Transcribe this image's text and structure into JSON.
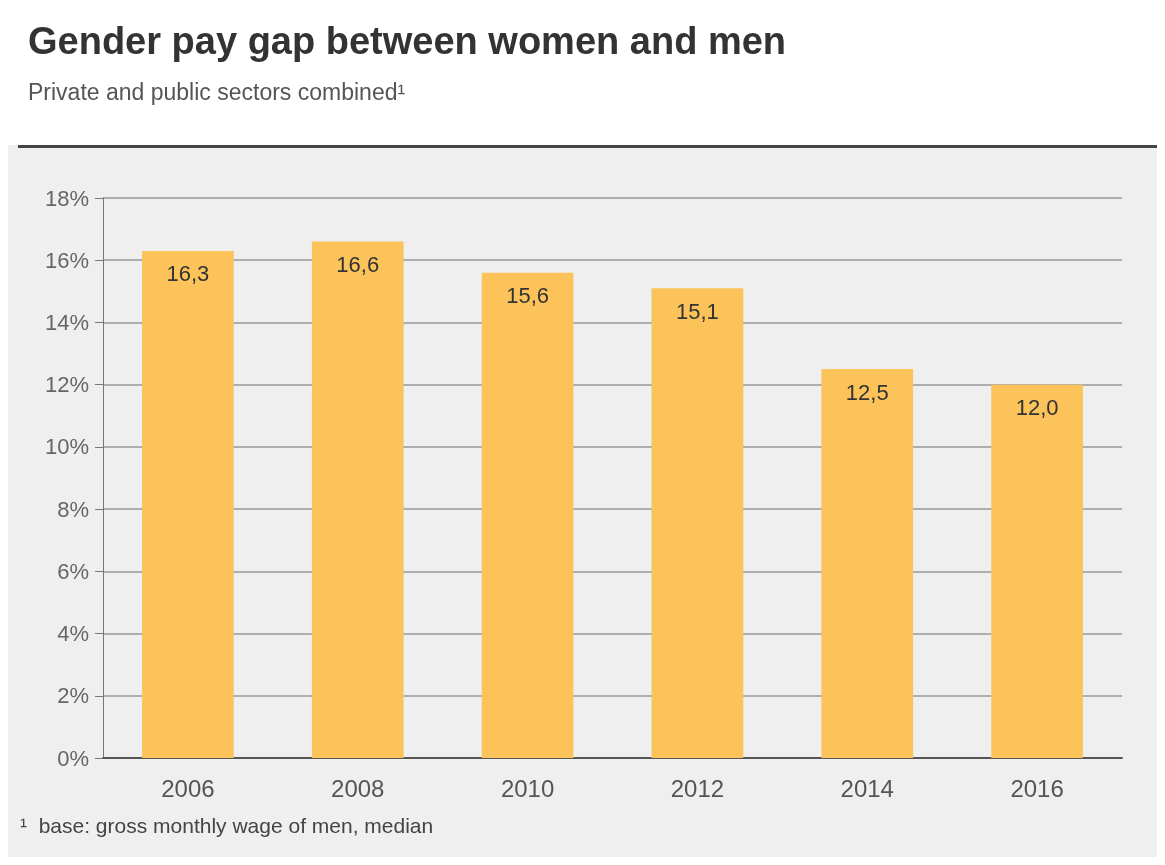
{
  "chart_data": {
    "type": "bar",
    "title": "Gender pay gap between women and men",
    "subtitle": "Private and public sectors combined¹",
    "categories": [
      "2006",
      "2008",
      "2010",
      "2012",
      "2014",
      "2016"
    ],
    "values": [
      16.3,
      16.6,
      15.6,
      15.1,
      12.5,
      12.0
    ],
    "value_labels": [
      "16,3",
      "16,6",
      "15,6",
      "15,1",
      "12,5",
      "12,0"
    ],
    "color": "#fbc35a",
    "ylim": [
      0,
      18
    ],
    "yticks": [
      {
        "value": 0,
        "label": "0%"
      },
      {
        "value": 2,
        "label": "2%"
      },
      {
        "value": 4,
        "label": "4%"
      },
      {
        "value": 6,
        "label": "6%"
      },
      {
        "value": 8,
        "label": "8%"
      },
      {
        "value": 10,
        "label": "10%"
      },
      {
        "value": 12,
        "label": "12%"
      },
      {
        "value": 14,
        "label": "14%"
      },
      {
        "value": 16,
        "label": "16%"
      },
      {
        "value": 18,
        "label": "18%"
      }
    ],
    "grid": "y",
    "annotations": [
      "¹  base: gross monthly wage of men, median"
    ]
  }
}
